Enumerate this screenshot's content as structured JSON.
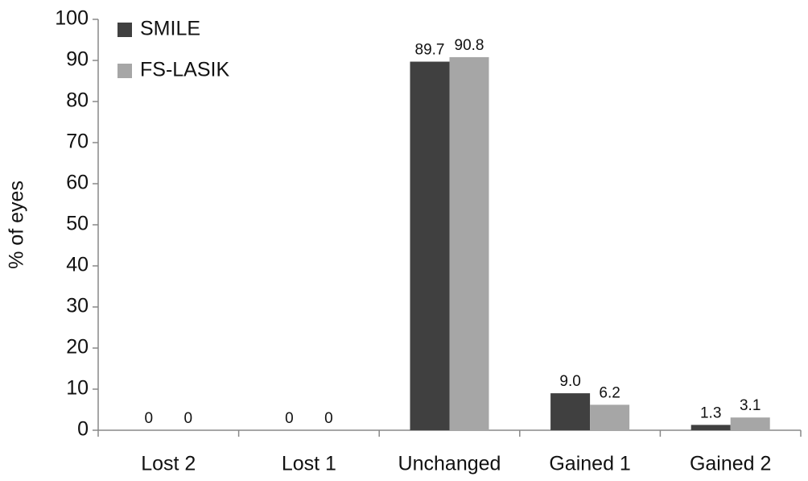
{
  "chart_data": {
    "type": "bar",
    "y_label": "% of eyes",
    "categories": [
      "Lost 2",
      "Lost 1",
      "Unchanged",
      "Gained 1",
      "Gained 2"
    ],
    "series": [
      {
        "name": "SMILE",
        "color": "#404040",
        "values": [
          0,
          0,
          89.7,
          9.0,
          1.3
        ],
        "value_labels": [
          "0",
          "0",
          "89.7",
          "9.0",
          "1.3"
        ]
      },
      {
        "name": "FS-LASIK",
        "color": "#a6a6a6",
        "values": [
          0,
          0,
          90.8,
          6.2,
          3.1
        ],
        "value_labels": [
          "0",
          "0",
          "90.8",
          "6.2",
          "3.1"
        ]
      }
    ],
    "ylim": [
      0,
      100
    ],
    "yticks": [
      0,
      10,
      20,
      30,
      40,
      50,
      60,
      70,
      80,
      90,
      100
    ],
    "grid": false,
    "legend": "top-left"
  }
}
